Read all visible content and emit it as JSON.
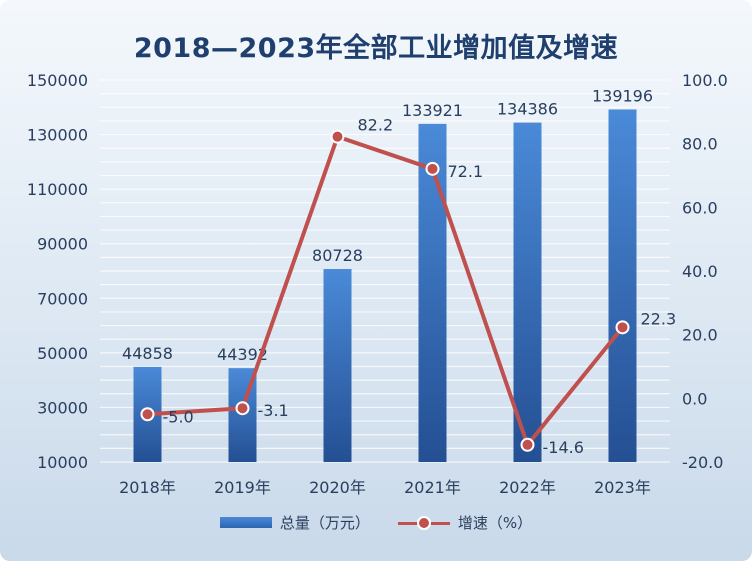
{
  "chart_data": {
    "type": "bar+line",
    "title": "2018—2023年全部工业增加值及增速",
    "categories": [
      "2018年",
      "2019年",
      "2020年",
      "2021年",
      "2022年",
      "2023年"
    ],
    "series": [
      {
        "name": "总量（万元）",
        "type": "bar",
        "axis": "left",
        "values": [
          44858,
          44392,
          80728,
          133921,
          134386,
          139196
        ],
        "labels": [
          "44858",
          "44392",
          "80728",
          "133921",
          "134386",
          "139196"
        ]
      },
      {
        "name": "增速（%）",
        "type": "line",
        "axis": "right",
        "values": [
          -5.0,
          -3.1,
          82.2,
          72.1,
          -14.6,
          22.3
        ],
        "labels": [
          "-5.0",
          "-3.1",
          "82.2",
          "72.1",
          "-14.6",
          "22.3"
        ]
      }
    ],
    "y_left": {
      "min": 10000,
      "max": 150000,
      "ticks": [
        "10000",
        "30000",
        "50000",
        "70000",
        "90000",
        "110000",
        "130000",
        "150000"
      ]
    },
    "y_right": {
      "min": -20,
      "max": 100,
      "ticks": [
        "-20.0",
        "0.0",
        "20.0",
        "40.0",
        "60.0",
        "80.0",
        "100.0"
      ]
    },
    "grid": true,
    "legend_position": "bottom",
    "colors": {
      "bar": "#3a78c9",
      "line": "#c0504d",
      "text": "#2a3f5f",
      "title": "#1f3f6e"
    }
  }
}
